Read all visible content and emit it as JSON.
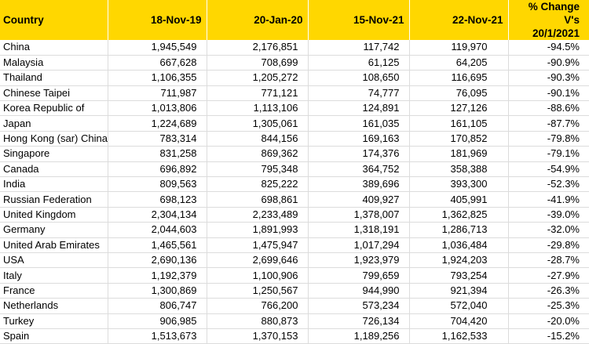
{
  "table": {
    "headers": {
      "country": "Country",
      "d1": "18-Nov-19",
      "d2": "20-Jan-20",
      "d3": "15-Nov-21",
      "d4": "22-Nov-21",
      "pct_line1": "% Change V's",
      "pct_line2": "20/1/2021"
    },
    "rows": [
      {
        "country": "China",
        "d1": "1,945,549",
        "d2": "2,176,851",
        "d3": "117,742",
        "d4": "119,970",
        "pct": "-94.5%"
      },
      {
        "country": "Malaysia",
        "d1": "667,628",
        "d2": "708,699",
        "d3": "61,125",
        "d4": "64,205",
        "pct": "-90.9%"
      },
      {
        "country": "Thailand",
        "d1": "1,106,355",
        "d2": "1,205,272",
        "d3": "108,650",
        "d4": "116,695",
        "pct": "-90.3%"
      },
      {
        "country": "Chinese Taipei",
        "d1": "711,987",
        "d2": "771,121",
        "d3": "74,777",
        "d4": "76,095",
        "pct": "-90.1%"
      },
      {
        "country": "Korea Republic of",
        "d1": "1,013,806",
        "d2": "1,113,106",
        "d3": "124,891",
        "d4": "127,126",
        "pct": "-88.6%"
      },
      {
        "country": "Japan",
        "d1": "1,224,689",
        "d2": "1,305,061",
        "d3": "161,035",
        "d4": "161,105",
        "pct": "-87.7%"
      },
      {
        "country": "Hong Kong (sar) China",
        "d1": "783,314",
        "d2": "844,156",
        "d3": "169,163",
        "d4": "170,852",
        "pct": "-79.8%"
      },
      {
        "country": "Singapore",
        "d1": "831,258",
        "d2": "869,362",
        "d3": "174,376",
        "d4": "181,969",
        "pct": "-79.1%"
      },
      {
        "country": "Canada",
        "d1": "696,892",
        "d2": "795,348",
        "d3": "364,752",
        "d4": "358,388",
        "pct": "-54.9%"
      },
      {
        "country": "India",
        "d1": "809,563",
        "d2": "825,222",
        "d3": "389,696",
        "d4": "393,300",
        "pct": "-52.3%"
      },
      {
        "country": "Russian Federation",
        "d1": "698,123",
        "d2": "698,861",
        "d3": "409,927",
        "d4": "405,991",
        "pct": "-41.9%"
      },
      {
        "country": "United Kingdom",
        "d1": "2,304,134",
        "d2": "2,233,489",
        "d3": "1,378,007",
        "d4": "1,362,825",
        "pct": "-39.0%"
      },
      {
        "country": "Germany",
        "d1": "2,044,603",
        "d2": "1,891,993",
        "d3": "1,318,191",
        "d4": "1,286,713",
        "pct": "-32.0%"
      },
      {
        "country": "United Arab Emirates",
        "d1": "1,465,561",
        "d2": "1,475,947",
        "d3": "1,017,294",
        "d4": "1,036,484",
        "pct": "-29.8%"
      },
      {
        "country": "USA",
        "d1": "2,690,136",
        "d2": "2,699,646",
        "d3": "1,923,979",
        "d4": "1,924,203",
        "pct": "-28.7%"
      },
      {
        "country": "Italy",
        "d1": "1,192,379",
        "d2": "1,100,906",
        "d3": "799,659",
        "d4": "793,254",
        "pct": "-27.9%"
      },
      {
        "country": "France",
        "d1": "1,300,869",
        "d2": "1,250,567",
        "d3": "944,990",
        "d4": "921,394",
        "pct": "-26.3%"
      },
      {
        "country": "Netherlands",
        "d1": "806,747",
        "d2": "766,200",
        "d3": "573,234",
        "d4": "572,040",
        "pct": "-25.3%"
      },
      {
        "country": "Turkey",
        "d1": "906,985",
        "d2": "880,873",
        "d3": "726,134",
        "d4": "704,420",
        "pct": "-20.0%"
      },
      {
        "country": "Spain",
        "d1": "1,513,673",
        "d2": "1,370,153",
        "d3": "1,189,256",
        "d4": "1,162,533",
        "pct": "-15.2%"
      }
    ]
  },
  "colors": {
    "header_background": "#ffd700",
    "gridline": "#dcdcdc"
  }
}
